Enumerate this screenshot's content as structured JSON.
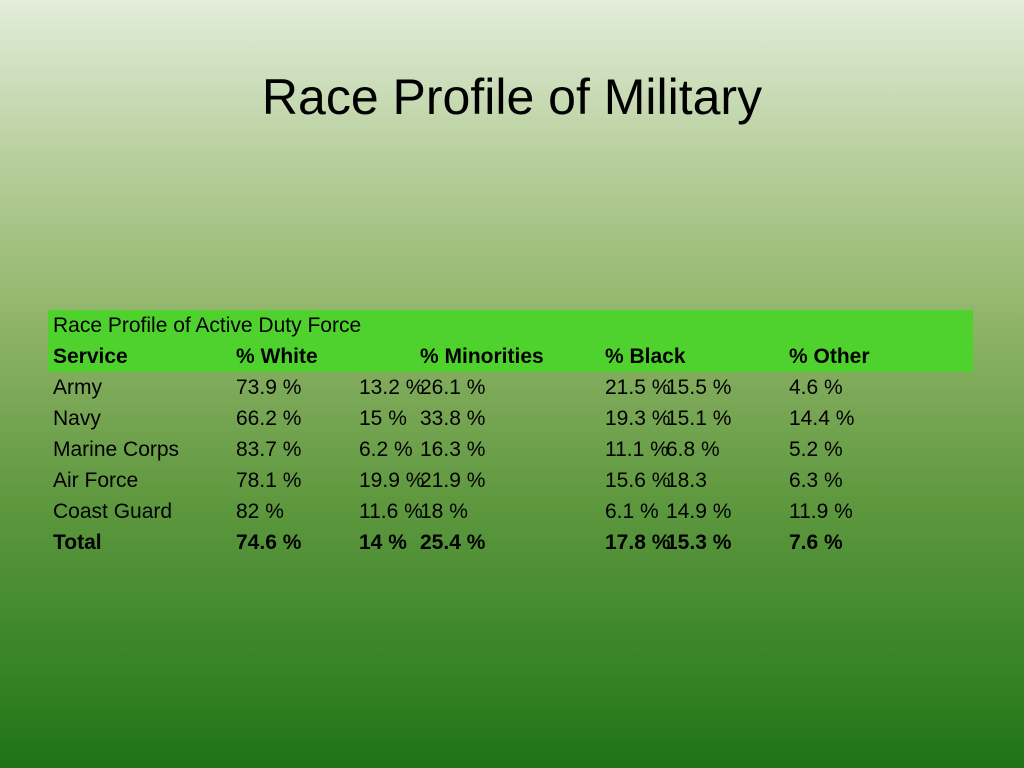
{
  "title": "Race Profile of Military",
  "table": {
    "caption": "Race Profile of Active Duty Force",
    "header": [
      "Service",
      "% White",
      "",
      "% Minorities",
      "% Black",
      "",
      "% Other"
    ],
    "rows": [
      [
        "Army",
        "73.9 %",
        "13.2 %",
        "26.1 %",
        "21.5 %",
        "15.5 %",
        "4.6 %"
      ],
      [
        "Navy",
        "66.2 %",
        "15 %",
        "33.8 %",
        "19.3 %",
        "15.1 %",
        "14.4 %"
      ],
      [
        "Marine Corps",
        "83.7 %",
        "6.2 %",
        "16.3 %",
        "11.1 %",
        "6.8 %",
        "5.2 %"
      ],
      [
        "Air Force",
        "78.1 %",
        "19.9 %",
        "21.9 %",
        "15.6 %",
        "18.3",
        "6.3 %"
      ],
      [
        "Coast Guard",
        "82 %",
        "11.6 %",
        "18 %",
        "6.1 %",
        "14.9 %",
        "11.9 %"
      ],
      [
        "Total",
        "74.6 %",
        "14 %",
        "25.4 %",
        "17.8 %",
        "15.3 %",
        "7.6 %"
      ]
    ]
  }
}
